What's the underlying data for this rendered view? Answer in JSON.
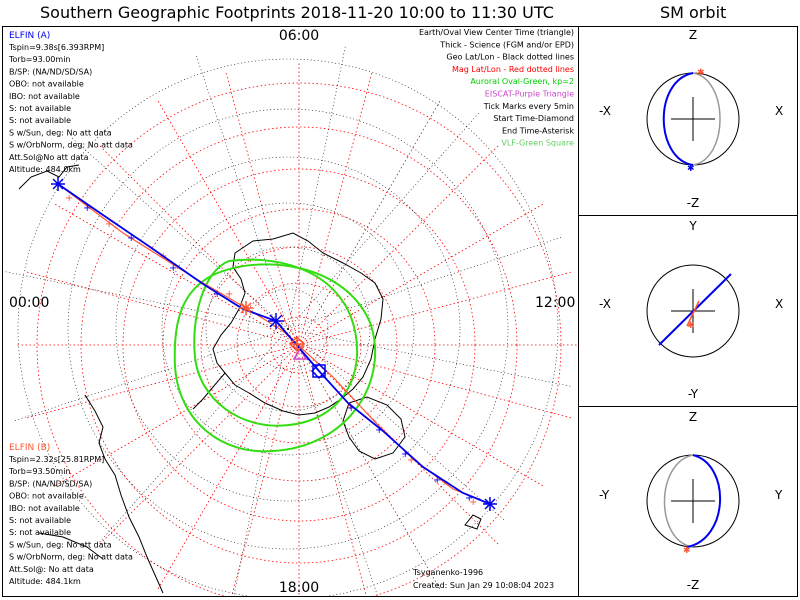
{
  "main_title": "Southern Geographic Footprints 2018-11-20 10:00 to 11:30 UTC",
  "orbit_title": "SM orbit",
  "map": {
    "mlt_labels": {
      "top": "06:00",
      "left": "00:00",
      "right": "12:00",
      "bottom": "18:00"
    },
    "elfin_a": {
      "header": "ELFIN (A)",
      "lines": [
        "Tspin=9.38s[6.393RPM]",
        "Torb=93.00min",
        "B/SP: (NA/ND/SD/SA)",
        "OBO: not available",
        "IBO: not available",
        "S: not available",
        "S: not available",
        "S w/Sun, deg: No att data",
        "S w/OrbNorm, deg: No att data",
        "Att.Sol@No att data",
        "Altitude: 484.0km"
      ]
    },
    "elfin_b": {
      "header": "ELFIN (B)",
      "lines": [
        "Tspin=2.32s[25.81RPM]",
        "Torb=93.50min",
        "B/SP: (NA/ND/SD/SA)",
        "OBO: not available",
        "IBO: not available",
        "S: not available",
        "S: not available",
        "S w/Sun, deg: No att data",
        "S w/OrbNorm, deg: No att data",
        "Att.Sol@: No att data",
        "Altitude: 484.1km"
      ]
    },
    "legend": [
      {
        "text": "Earth/Oval View Center Time (triangle)",
        "color": "#000000"
      },
      {
        "text": "Thick - Science (FGM and/or EPD)",
        "color": "#000000"
      },
      {
        "text": "Geo Lat/Lon - Black dotted lines",
        "color": "#000000"
      },
      {
        "text": "Mag Lat/Lon - Red dotted lines",
        "color": "#ff0000"
      },
      {
        "text": "Auroral Oval-Green, kp=2",
        "color": "#00cc00"
      },
      {
        "text": "EISCAT-Purple Triangle",
        "color": "#cc44cc"
      },
      {
        "text": "Tick Marks every 5min",
        "color": "#000000"
      },
      {
        "text": "Start Time-Diamond",
        "color": "#000000"
      },
      {
        "text": "End Time-Asterisk",
        "color": "#000000"
      },
      {
        "text": "VLF-Green Square",
        "color": "#66cc66"
      }
    ],
    "model": "Tsyganenko-1996",
    "created": "Created: Sun Jan 29 10:08:04 2023",
    "colors": {
      "elfin_a": "#0000ee",
      "elfin_b": "#ff5533",
      "oval": "#33dd11",
      "geo_grid": "#000000",
      "mag_grid": "#ff0000"
    }
  },
  "orbit_panels": [
    {
      "up": "Z",
      "down": "-Z",
      "left": "-X",
      "right": "X"
    },
    {
      "up": "Y",
      "down": "-Y",
      "left": "-X",
      "right": "X"
    },
    {
      "up": "Z",
      "down": "-Z",
      "left": "-Y",
      "right": "Y"
    }
  ]
}
